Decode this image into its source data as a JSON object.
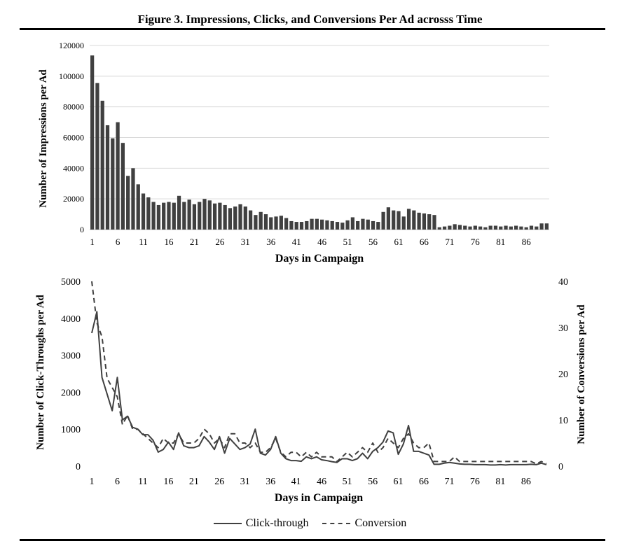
{
  "figure_title": "Figure 3. Impressions, Clicks, and Conversions Per Ad acrosss Time",
  "colors": {
    "bar": "#404040",
    "line": "#404040",
    "grid": "#d9d9d9"
  },
  "chart_data": [
    {
      "type": "bar",
      "title": "",
      "xlabel": "Days in Campaign",
      "ylabel": "Number of Impressions per Ad",
      "ylim": [
        0,
        120000
      ],
      "yticks": [
        "0",
        "20000",
        "40000",
        "60000",
        "80000",
        "100000",
        "120000"
      ],
      "xticks": [
        "1",
        "6",
        "11",
        "16",
        "21",
        "26",
        "31",
        "36",
        "41",
        "46",
        "51",
        "56",
        "61",
        "66",
        "71",
        "76",
        "81",
        "86"
      ],
      "grid": true,
      "x": [
        1,
        2,
        3,
        4,
        5,
        6,
        7,
        8,
        9,
        10,
        11,
        12,
        13,
        14,
        15,
        16,
        17,
        18,
        19,
        20,
        21,
        22,
        23,
        24,
        25,
        26,
        27,
        28,
        29,
        30,
        31,
        32,
        33,
        34,
        35,
        36,
        37,
        38,
        39,
        40,
        41,
        42,
        43,
        44,
        45,
        46,
        47,
        48,
        49,
        50,
        51,
        52,
        53,
        54,
        55,
        56,
        57,
        58,
        59,
        60,
        61,
        62,
        63,
        64,
        65,
        66,
        67,
        68,
        69,
        70,
        71,
        72,
        73,
        74,
        75,
        76,
        77,
        78,
        79,
        80,
        81,
        82,
        83,
        84,
        85,
        86,
        87,
        88,
        89,
        90
      ],
      "values": [
        113500,
        95500,
        84000,
        68000,
        59500,
        70000,
        56500,
        35000,
        40000,
        29500,
        23500,
        21000,
        18000,
        16000,
        17500,
        18000,
        17500,
        22000,
        18000,
        19500,
        16500,
        18000,
        20000,
        19000,
        17000,
        17500,
        16000,
        14000,
        15000,
        16500,
        15000,
        12500,
        9500,
        11500,
        10000,
        8000,
        8500,
        9000,
        7500,
        5500,
        5000,
        5000,
        5500,
        7000,
        7000,
        6500,
        6000,
        5500,
        5000,
        4500,
        6000,
        8000,
        5500,
        7000,
        6500,
        5500,
        5000,
        11500,
        14500,
        12500,
        12000,
        8500,
        13500,
        12500,
        11000,
        10500,
        10000,
        9500,
        1500,
        2000,
        2500,
        3500,
        3000,
        2500,
        2000,
        2500,
        2000,
        1500,
        2500,
        2500,
        2000,
        2500,
        2000,
        2500,
        2000,
        1500,
        2500,
        2000,
        4000,
        4000
      ]
    },
    {
      "type": "line",
      "title": "",
      "xlabel": "Days in Campaign",
      "ylabel": "Number of Click-Throughs per Ad",
      "ylabel_right": "Number of Conversions per Ad",
      "ylim": [
        0,
        5000
      ],
      "ylim_right": [
        0,
        40
      ],
      "yticks": [
        "0",
        "1000",
        "2000",
        "3000",
        "4000",
        "5000"
      ],
      "yticks_right": [
        "0",
        "10",
        "20",
        "30",
        "40"
      ],
      "xticks": [
        "1",
        "6",
        "11",
        "16",
        "21",
        "26",
        "31",
        "36",
        "41",
        "46",
        "51",
        "56",
        "61",
        "66",
        "71",
        "76",
        "81",
        "86"
      ],
      "grid": false,
      "legend": [
        "Click-through",
        "Conversion"
      ],
      "series": [
        {
          "name": "Click-through",
          "axis": "left",
          "style": "solid",
          "x": [
            1,
            2,
            3,
            4,
            5,
            6,
            7,
            8,
            9,
            10,
            11,
            12,
            13,
            14,
            15,
            16,
            17,
            18,
            19,
            20,
            21,
            22,
            23,
            24,
            25,
            26,
            27,
            28,
            29,
            30,
            31,
            32,
            33,
            34,
            35,
            36,
            37,
            38,
            39,
            40,
            41,
            42,
            43,
            44,
            45,
            46,
            47,
            48,
            49,
            50,
            51,
            52,
            53,
            54,
            55,
            56,
            57,
            58,
            59,
            60,
            61,
            62,
            63,
            64,
            65,
            66,
            67,
            68,
            69,
            70,
            71,
            72,
            73,
            74,
            75,
            76,
            77,
            78,
            79,
            80,
            81,
            82,
            83,
            84,
            85,
            86,
            87,
            88,
            89,
            90
          ],
          "values": [
            3600,
            4180,
            2400,
            1950,
            1500,
            2400,
            1250,
            1350,
            1050,
            1000,
            850,
            850,
            700,
            380,
            450,
            650,
            450,
            900,
            550,
            500,
            500,
            550,
            800,
            650,
            450,
            800,
            350,
            750,
            600,
            450,
            500,
            600,
            1000,
            350,
            300,
            450,
            800,
            350,
            200,
            150,
            150,
            130,
            250,
            200,
            250,
            170,
            150,
            120,
            100,
            200,
            200,
            150,
            200,
            350,
            200,
            400,
            500,
            650,
            950,
            900,
            320,
            600,
            1100,
            400,
            400,
            350,
            300,
            50,
            50,
            80,
            100,
            80,
            60,
            50,
            50,
            40,
            40,
            40,
            30,
            30,
            40,
            30,
            40,
            40,
            40,
            40,
            50,
            40,
            80,
            40
          ]
        },
        {
          "name": "Conversion",
          "axis": "right",
          "style": "dashed",
          "x": [
            1,
            2,
            3,
            4,
            5,
            6,
            7,
            8,
            9,
            10,
            11,
            12,
            13,
            14,
            15,
            16,
            17,
            18,
            19,
            20,
            21,
            22,
            23,
            24,
            25,
            26,
            27,
            28,
            29,
            30,
            31,
            32,
            33,
            34,
            35,
            36,
            37,
            38,
            39,
            40,
            41,
            42,
            43,
            44,
            45,
            46,
            47,
            48,
            49,
            50,
            51,
            52,
            53,
            54,
            55,
            56,
            57,
            58,
            59,
            60,
            61,
            62,
            63,
            64,
            65,
            66,
            67,
            68,
            69,
            70,
            71,
            72,
            73,
            74,
            75,
            76,
            77,
            78,
            79,
            80,
            81,
            82,
            83,
            84,
            85,
            86,
            87,
            88,
            89,
            90
          ],
          "values": [
            40,
            31,
            28,
            19,
            17,
            15,
            9,
            11,
            8,
            8,
            7,
            6,
            5,
            4,
            6,
            5,
            5,
            7,
            5,
            5,
            5,
            6,
            8,
            7,
            5,
            6,
            4,
            7,
            7,
            5,
            5,
            4,
            5,
            3,
            3,
            4,
            6,
            3,
            2,
            3,
            3,
            2,
            3,
            2,
            3,
            2,
            2,
            2,
            1,
            2,
            3,
            2,
            3,
            4,
            3,
            5,
            3,
            4,
            6,
            5,
            4,
            6,
            7,
            5,
            4,
            4,
            5,
            1,
            1,
            1,
            1,
            2,
            1,
            1,
            1,
            1,
            1,
            1,
            1,
            1,
            1,
            1,
            1,
            1,
            1,
            1,
            1,
            0.5,
            1,
            0.5
          ]
        }
      ]
    }
  ]
}
